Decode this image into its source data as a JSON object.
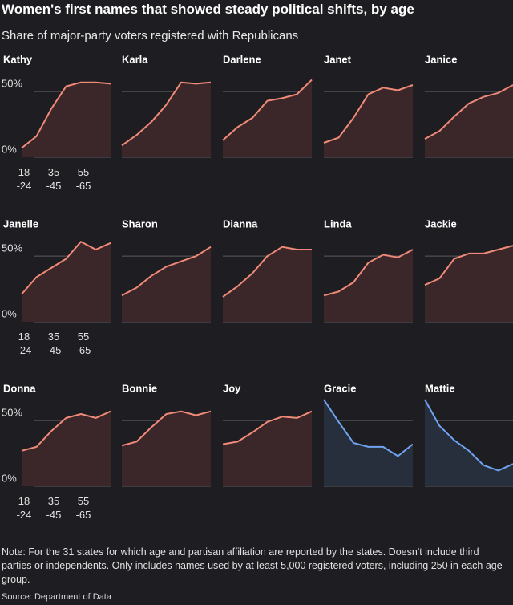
{
  "chart_data": {
    "type": "area",
    "title": "Women's first names that showed steady political shifts, by age",
    "subtitle": "Share of major-party voters registered with Republicans",
    "categories": [
      "18 -24",
      null,
      "35 -45",
      null,
      "55 -65",
      null,
      null
    ],
    "ylim": [
      0,
      66
    ],
    "yticks": [
      {
        "value": 0,
        "label": "0%"
      },
      {
        "value": 50,
        "label": "50%"
      }
    ],
    "grid": true,
    "series": [
      {
        "name": "Kathy",
        "color": "#f08a78",
        "fill": "#3b2729",
        "values": [
          7,
          16,
          37,
          54,
          57,
          57,
          56
        ]
      },
      {
        "name": "Karla",
        "color": "#f08a78",
        "fill": "#3b2729",
        "values": [
          9,
          17,
          27,
          40,
          57,
          56,
          57
        ]
      },
      {
        "name": "Darlene",
        "color": "#f08a78",
        "fill": "#3b2729",
        "values": [
          13,
          23,
          30,
          43,
          45,
          48,
          59
        ]
      },
      {
        "name": "Janet",
        "color": "#f08a78",
        "fill": "#3b2729",
        "values": [
          11,
          15,
          30,
          48,
          53,
          51,
          55
        ]
      },
      {
        "name": "Janice",
        "color": "#f08a78",
        "fill": "#3b2729",
        "values": [
          14,
          20,
          31,
          41,
          46,
          49,
          55
        ]
      },
      {
        "name": "Janelle",
        "color": "#f08a78",
        "fill": "#3b2729",
        "values": [
          21,
          34,
          41,
          48,
          61,
          55,
          60
        ]
      },
      {
        "name": "Sharon",
        "color": "#f08a78",
        "fill": "#3b2729",
        "values": [
          20,
          26,
          35,
          42,
          46,
          50,
          57
        ]
      },
      {
        "name": "Dianna",
        "color": "#f08a78",
        "fill": "#3b2729",
        "values": [
          19,
          27,
          37,
          50,
          57,
          55,
          55
        ]
      },
      {
        "name": "Linda",
        "color": "#f08a78",
        "fill": "#3b2729",
        "values": [
          20,
          23,
          30,
          45,
          51,
          49,
          55
        ]
      },
      {
        "name": "Jackie",
        "color": "#f08a78",
        "fill": "#3b2729",
        "values": [
          28,
          33,
          48,
          52,
          52,
          55,
          58
        ]
      },
      {
        "name": "Donna",
        "color": "#f08a78",
        "fill": "#3b2729",
        "values": [
          27,
          30,
          42,
          52,
          55,
          52,
          57
        ]
      },
      {
        "name": "Bonnie",
        "color": "#f08a78",
        "fill": "#3b2729",
        "values": [
          31,
          34,
          45,
          55,
          57,
          54,
          57
        ]
      },
      {
        "name": "Joy",
        "color": "#f08a78",
        "fill": "#3b2729",
        "values": [
          32,
          34,
          41,
          49,
          53,
          52,
          57
        ]
      },
      {
        "name": "Gracie",
        "color": "#6fa3f0",
        "fill": "#272f3d",
        "values": [
          66,
          49,
          33,
          30,
          30,
          23,
          32
        ]
      },
      {
        "name": "Mattie",
        "color": "#6fa3f0",
        "fill": "#272f3d",
        "values": [
          66,
          46,
          35,
          27,
          16,
          12,
          17
        ]
      }
    ],
    "note": "Note: For the 31 states for which age and partisan affiliation are reported by the states. Doesn't include third parties or independents. Only includes names used by at least 5,000 registered voters, including 250 in each age group.",
    "source": "Source: Department of Data"
  }
}
